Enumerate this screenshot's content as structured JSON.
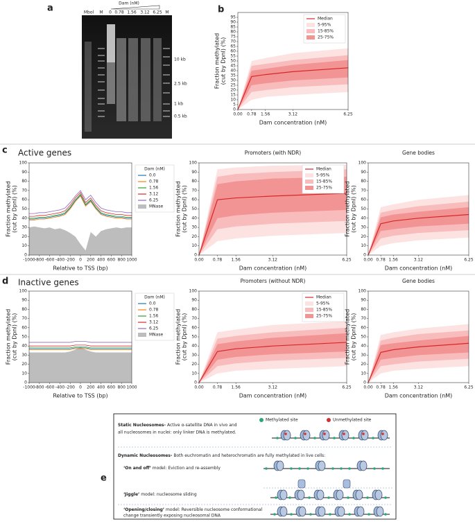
{
  "panel_labels": [
    "a",
    "b",
    "c",
    "d",
    "e"
  ],
  "sections": [
    "Active genes",
    "Inactive genes"
  ],
  "gel": {
    "title": "Dam (nM)",
    "lanes": [
      "Mbol",
      "M",
      "0",
      "0.78",
      "1.56",
      "3.12",
      "6.25",
      "M"
    ],
    "markers": [
      "10 kb",
      "2.5 kb",
      "1 kb",
      "0.5 kb"
    ]
  },
  "diagram": {
    "static": {
      "heading": "Static Nucleosomes-",
      "line1": "Active α-satellite DNA in vivo and",
      "line2": "all nucleosomes in nuclei: only linker DNA is methylated."
    },
    "legend": [
      "Methylated site",
      "Unmethylated site"
    ],
    "dynamic": {
      "heading": "Dynamic Nucleosomes-",
      "line1": "Both euchromatin and heterochromatin are fully methylated in live cells:"
    },
    "models": [
      {
        "name": "‘On and off’",
        "desc": "model: Eviction and re-assembly"
      },
      {
        "name": "‘Jiggle’",
        "desc": "model: nucleosome sliding"
      },
      {
        "name": "‘Opening/closing’",
        "desc": "model: Reversible nucleosome conformational",
        "desc2": "change transiently exposing nucleosomal DNA"
      }
    ]
  },
  "chart_data": [
    {
      "type": "band",
      "x": [
        0,
        0.78,
        1.56,
        3.12,
        6.25
      ],
      "xlim": [
        0,
        6.25
      ],
      "xticks": [
        {
          "value": 0,
          "label": "0.00"
        },
        0.78,
        1.56,
        3.12,
        6.25
      ],
      "ylim": [
        0,
        100
      ],
      "yticks": [
        0,
        5,
        10,
        15,
        20,
        25,
        30,
        35,
        40,
        45,
        50,
        55,
        60,
        65,
        70,
        75,
        80,
        85,
        90,
        95
      ],
      "xlabel": "Dam concentration (nM)",
      "ylabel": [
        "Fraction methylated",
        "(cut by DpnI) (%)"
      ],
      "legend": "upper right",
      "series": [
        {
          "name": "Median",
          "color": "#d62728",
          "values": [
            0,
            34,
            36,
            39,
            43
          ]
        },
        {
          "name": "5-95%",
          "color": "#fde2e2",
          "lower": [
            0,
            10,
            13,
            15,
            18
          ],
          "upper": [
            0,
            50,
            53,
            58,
            63
          ]
        },
        {
          "name": "15-85%",
          "color": "#f9bcbc",
          "lower": [
            0,
            18,
            20,
            23,
            26
          ],
          "upper": [
            0,
            45,
            47,
            51,
            56
          ]
        },
        {
          "name": "25-75%",
          "color": "#f39494",
          "lower": [
            0,
            25,
            27,
            30,
            33
          ],
          "upper": [
            0,
            40,
            42,
            46,
            51
          ]
        }
      ]
    },
    {
      "type": "line",
      "x": [
        -1000,
        -900,
        -800,
        -700,
        -600,
        -500,
        -400,
        -300,
        -200,
        -100,
        0,
        100,
        200,
        300,
        400,
        500,
        600,
        700,
        800,
        900,
        1000
      ],
      "xlim": [
        -1000,
        1000
      ],
      "xticks": [
        -1000,
        -800,
        -600,
        -400,
        -200,
        0,
        200,
        400,
        600,
        800,
        1000
      ],
      "ylim": [
        0,
        100
      ],
      "yticks": [
        0,
        10,
        20,
        30,
        40,
        50,
        60,
        70,
        80,
        90,
        100
      ],
      "xlabel": "Relative to TSS (bp)",
      "ylabel": [
        "Fraction methylated",
        "(cut by DpnI) (%)"
      ],
      "legend": "outside right",
      "legend_title": "Dam (nM)",
      "series": [
        {
          "name": "0.0",
          "color": "#1f77b4",
          "values": [
            39,
            39,
            40,
            40,
            41,
            42,
            43,
            45,
            51,
            59,
            65,
            54,
            59,
            51,
            45,
            43,
            42,
            41,
            41,
            40,
            40
          ]
        },
        {
          "name": "0.78",
          "color": "#ff7f0e",
          "values": [
            38,
            38,
            39,
            39,
            40,
            41,
            42,
            44,
            50,
            58,
            64,
            53,
            58,
            50,
            44,
            42,
            41,
            40,
            40,
            39,
            39
          ]
        },
        {
          "name": "1.56",
          "color": "#2ca02c",
          "values": [
            40,
            40,
            41,
            41,
            42,
            43,
            44,
            46,
            52,
            60,
            66,
            55,
            60,
            52,
            46,
            44,
            43,
            42,
            42,
            41,
            41
          ]
        },
        {
          "name": "3.12",
          "color": "#d62728",
          "values": [
            42,
            42,
            43,
            43,
            44,
            45,
            46,
            48,
            54,
            62,
            68,
            57,
            62,
            54,
            48,
            46,
            45,
            44,
            44,
            43,
            43
          ]
        },
        {
          "name": "6.25",
          "color": "#9467bd",
          "values": [
            45,
            45,
            46,
            46,
            47,
            48,
            49,
            51,
            57,
            64,
            70,
            60,
            65,
            57,
            51,
            49,
            48,
            47,
            47,
            46,
            46
          ]
        },
        {
          "name": "MNase",
          "color": "#bdbdbd",
          "fill": true,
          "values": [
            30,
            31,
            30,
            29,
            30,
            28,
            29,
            27,
            24,
            20,
            12,
            5,
            25,
            20,
            26,
            28,
            29,
            30,
            29,
            30,
            30
          ]
        }
      ]
    },
    {
      "type": "band",
      "title": "Promoters (with NDR)",
      "x": [
        0,
        0.78,
        1.56,
        3.12,
        6.25
      ],
      "xlim": [
        0,
        6.25
      ],
      "xticks": [
        {
          "value": 0,
          "label": "0.00"
        },
        0.78,
        1.56,
        3.12,
        6.25
      ],
      "ylim": [
        0,
        100
      ],
      "yticks": [
        0,
        10,
        20,
        30,
        40,
        50,
        60,
        70,
        80,
        90,
        100
      ],
      "xlabel": "Dam concentration (nM)",
      "ylabel": [
        "Fraction methylated",
        "(cut by DpnI) (%)"
      ],
      "legend": "upper right",
      "series": [
        {
          "name": "Median",
          "color": "#d62728",
          "values": [
            0,
            60,
            62,
            64,
            67
          ]
        },
        {
          "name": "5-95%",
          "color": "#fde2e2",
          "lower": [
            0,
            15,
            18,
            21,
            24
          ],
          "upper": [
            0,
            93,
            95,
            97,
            98
          ]
        },
        {
          "name": "15-85%",
          "color": "#f9bcbc",
          "lower": [
            0,
            28,
            31,
            34,
            37
          ],
          "upper": [
            0,
            85,
            88,
            90,
            93
          ]
        },
        {
          "name": "25-75%",
          "color": "#f39494",
          "lower": [
            0,
            40,
            43,
            46,
            49
          ],
          "upper": [
            0,
            77,
            80,
            83,
            85
          ]
        }
      ]
    },
    {
      "type": "band",
      "title": "Gene bodies",
      "x": [
        0,
        0.78,
        1.56,
        3.12,
        6.25
      ],
      "xlim": [
        0,
        6.25
      ],
      "xticks": [
        {
          "value": 0,
          "label": "0.00"
        },
        0.78,
        1.56,
        3.12,
        6.25
      ],
      "ylim": [
        0,
        100
      ],
      "yticks": [
        0,
        10,
        20,
        30,
        40,
        50,
        60,
        70,
        80,
        90,
        100
      ],
      "xlabel": "Dam concentration (nM)",
      "ylabel": [
        "Fraction methylated",
        "(cut by DpnI) (%)"
      ],
      "series": [
        {
          "color": "#d62728",
          "values": [
            0,
            34,
            37,
            40,
            44
          ]
        },
        {
          "color": "#fde2e2",
          "lower": [
            0,
            10,
            13,
            16,
            19
          ],
          "upper": [
            0,
            52,
            55,
            60,
            65
          ]
        },
        {
          "color": "#f9bcbc",
          "lower": [
            0,
            18,
            21,
            24,
            27
          ],
          "upper": [
            0,
            46,
            49,
            53,
            58
          ]
        },
        {
          "color": "#f39494",
          "lower": [
            0,
            26,
            28,
            31,
            34
          ],
          "upper": [
            0,
            41,
            44,
            47,
            52
          ]
        }
      ]
    },
    {
      "type": "line",
      "x": [
        -1000,
        -900,
        -800,
        -700,
        -600,
        -500,
        -400,
        -300,
        -200,
        -100,
        0,
        100,
        200,
        300,
        400,
        500,
        600,
        700,
        800,
        900,
        1000
      ],
      "xlim": [
        -1000,
        1000
      ],
      "xticks": [
        -1000,
        -800,
        -600,
        -400,
        -200,
        0,
        200,
        400,
        600,
        800,
        1000
      ],
      "ylim": [
        0,
        100
      ],
      "yticks": [
        0,
        10,
        20,
        30,
        40,
        50,
        60,
        70,
        80,
        90,
        100
      ],
      "xlabel": "Relative to TSS (bp)",
      "ylabel": [
        "Fraction methylated",
        "(cut by DpnI) (%)"
      ],
      "legend": "outside right",
      "legend_title": "Dam (nM)",
      "series": [
        {
          "name": "0.0",
          "color": "#1f77b4",
          "values": [
            37,
            37,
            37,
            37,
            37,
            37,
            37,
            37,
            37,
            38,
            38,
            38,
            37,
            37,
            37,
            37,
            37,
            37,
            37,
            37,
            37
          ]
        },
        {
          "name": "0.78",
          "color": "#ff7f0e",
          "values": [
            36,
            36,
            36,
            36,
            36,
            36,
            36,
            36,
            36,
            37,
            37,
            37,
            36,
            36,
            36,
            36,
            36,
            36,
            36,
            36,
            36
          ]
        },
        {
          "name": "1.56",
          "color": "#2ca02c",
          "values": [
            38,
            38,
            38,
            38,
            38,
            38,
            38,
            38,
            38,
            39,
            39,
            39,
            38,
            38,
            38,
            38,
            38,
            38,
            38,
            38,
            38
          ]
        },
        {
          "name": "3.12",
          "color": "#d62728",
          "values": [
            40,
            40,
            40,
            40,
            40,
            40,
            40,
            40,
            40,
            41,
            41,
            41,
            40,
            40,
            40,
            40,
            40,
            40,
            40,
            40,
            40
          ]
        },
        {
          "name": "6.25",
          "color": "#9467bd",
          "values": [
            44,
            44,
            44,
            44,
            44,
            44,
            44,
            44,
            44,
            45,
            45,
            45,
            44,
            44,
            44,
            44,
            44,
            44,
            44,
            44,
            44
          ]
        },
        {
          "name": "MNase",
          "color": "#bdbdbd",
          "fill": true,
          "values": [
            33,
            33,
            33,
            33,
            33,
            33,
            33,
            33,
            34,
            36,
            39,
            36,
            34,
            33,
            33,
            33,
            33,
            33,
            33,
            33,
            33
          ]
        }
      ]
    },
    {
      "type": "band",
      "title": "Promoters (without NDR)",
      "x": [
        0,
        0.78,
        1.56,
        3.12,
        6.25
      ],
      "xlim": [
        0,
        6.25
      ],
      "xticks": [
        {
          "value": 0,
          "label": "0.00"
        },
        0.78,
        1.56,
        3.12,
        6.25
      ],
      "ylim": [
        0,
        100
      ],
      "yticks": [
        0,
        10,
        20,
        30,
        40,
        50,
        60,
        70,
        80,
        90,
        100
      ],
      "xlabel": "Dam concentration (nM)",
      "ylabel": [
        "Fraction methylated",
        "(cut by DpnI) (%)"
      ],
      "legend": "upper right",
      "series": [
        {
          "name": "Median",
          "color": "#d62728",
          "values": [
            0,
            34,
            37,
            40,
            44
          ]
        },
        {
          "name": "5-95%",
          "color": "#fde2e2",
          "lower": [
            0,
            10,
            13,
            15,
            18
          ],
          "upper": [
            0,
            55,
            58,
            63,
            67
          ]
        },
        {
          "name": "15-85%",
          "color": "#f9bcbc",
          "lower": [
            0,
            18,
            21,
            24,
            27
          ],
          "upper": [
            0,
            48,
            51,
            55,
            60
          ]
        },
        {
          "name": "25-75%",
          "color": "#f39494",
          "lower": [
            0,
            25,
            28,
            31,
            34
          ],
          "upper": [
            0,
            42,
            45,
            49,
            54
          ]
        }
      ]
    },
    {
      "type": "band",
      "title": "Gene bodies",
      "x": [
        0,
        0.78,
        1.56,
        3.12,
        6.25
      ],
      "xlim": [
        0,
        6.25
      ],
      "xticks": [
        {
          "value": 0,
          "label": "0.00"
        },
        0.78,
        1.56,
        3.12,
        6.25
      ],
      "ylim": [
        0,
        100
      ],
      "yticks": [
        0,
        10,
        20,
        30,
        40,
        50,
        60,
        70,
        80,
        90,
        100
      ],
      "xlabel": "Dam concentration (nM)",
      "ylabel": [
        "Fraction methylated",
        "(cut by DpnI) (%)"
      ],
      "series": [
        {
          "color": "#d62728",
          "values": [
            0,
            33,
            36,
            39,
            43
          ]
        },
        {
          "color": "#fde2e2",
          "lower": [
            0,
            10,
            13,
            15,
            18
          ],
          "upper": [
            0,
            52,
            55,
            59,
            64
          ]
        },
        {
          "color": "#f9bcbc",
          "lower": [
            0,
            18,
            20,
            23,
            26
          ],
          "upper": [
            0,
            46,
            49,
            53,
            57
          ]
        },
        {
          "color": "#f39494",
          "lower": [
            0,
            25,
            27,
            30,
            33
          ],
          "upper": [
            0,
            41,
            43,
            46,
            51
          ]
        }
      ]
    }
  ]
}
